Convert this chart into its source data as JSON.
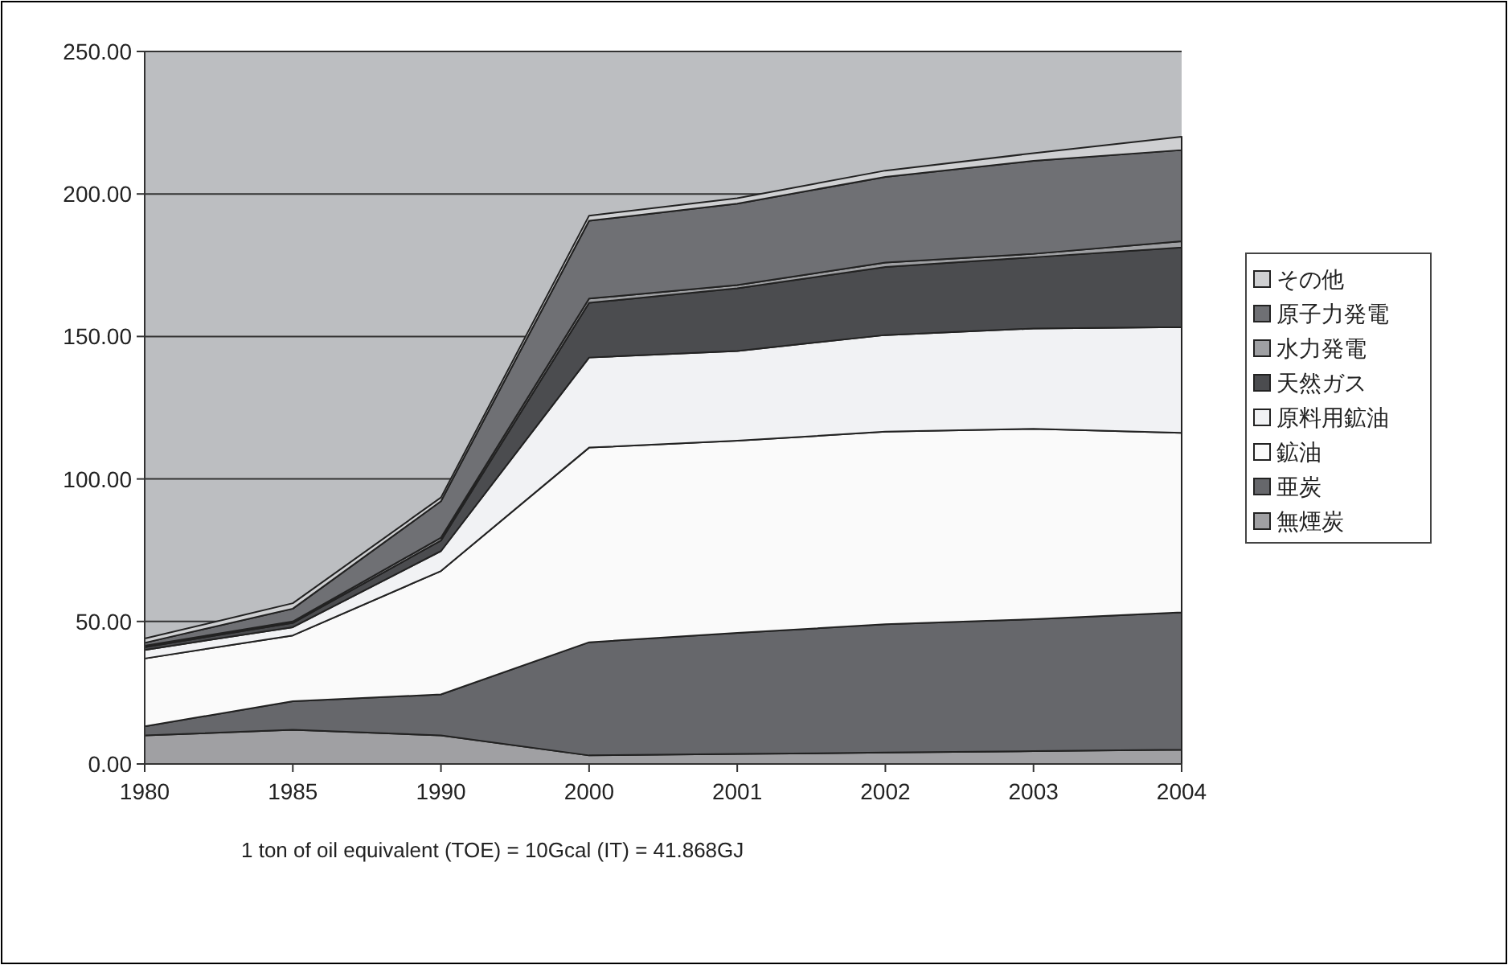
{
  "chart_data": {
    "type": "area",
    "stacked": true,
    "categories": [
      "1980",
      "1985",
      "1990",
      "2000",
      "2001",
      "2002",
      "2003",
      "2004"
    ],
    "series": [
      {
        "name": "無煙炭",
        "color": "#a0a0a3",
        "values": [
          10,
          12,
          10,
          3,
          3.5,
          4,
          4.5,
          5
        ]
      },
      {
        "name": "亜炭",
        "color": "#66676b",
        "values": [
          3.2,
          10,
          14.4,
          39.7,
          42.5,
          45,
          46.3,
          48.2
        ]
      },
      {
        "name": "鉱油",
        "color": "#fafafa",
        "values": [
          23.8,
          23.1,
          43.3,
          68.3,
          67.4,
          67.6,
          66.8,
          63
        ]
      },
      {
        "name": "原料用鉱油",
        "color": "#f1f2f4",
        "values": [
          3,
          2.9,
          7,
          31.6,
          31.5,
          33.9,
          35.2,
          37.1
        ]
      },
      {
        "name": "天然ガス",
        "color": "#4b4c4f",
        "values": [
          1,
          1.5,
          3.7,
          19.2,
          22,
          23.9,
          25,
          27.9
        ]
      },
      {
        "name": "水力発電",
        "color": "#9fa0a3",
        "values": [
          0.5,
          0.5,
          1,
          1.5,
          1.1,
          1.5,
          1.2,
          2.2
        ]
      },
      {
        "name": "原子力発電",
        "color": "#6f7074",
        "values": [
          1,
          4.5,
          12.8,
          27.3,
          28.6,
          30.1,
          32.6,
          32
        ]
      },
      {
        "name": "その他",
        "color": "#cfd0d2",
        "values": [
          1.5,
          1.9,
          1.3,
          1.8,
          1.9,
          2.2,
          2.7,
          4.7
        ]
      }
    ],
    "ylim": [
      0,
      250
    ],
    "yticks": [
      {
        "value": 0,
        "label": "0.00"
      },
      {
        "value": 50,
        "label": "50.00"
      },
      {
        "value": 100,
        "label": "100.00"
      },
      {
        "value": 150,
        "label": "150.00"
      },
      {
        "value": 200,
        "label": "200.00"
      },
      {
        "value": 250,
        "label": "250.00"
      }
    ],
    "grid": "y",
    "legend": "right",
    "annotations": [
      "1 ton of oil equivalent (TOE) = 10Gcal (IT) = 41.868GJ"
    ]
  }
}
